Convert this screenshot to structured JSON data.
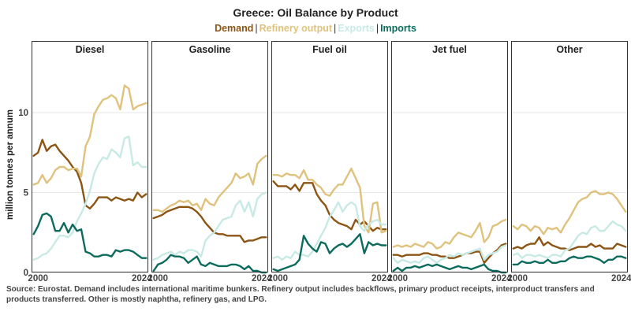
{
  "chart": {
    "title": "Greece: Oil Balance by Product",
    "ylabel": "million tonnes per annum",
    "source": "Source: Eurostat. Demand includes international maritime bunkers. Refinery output includes backflows, primary product receipts, interproduct transfers and products transferred. Other is mostly naphtha, refinery gas, and LPG.",
    "legend_separator": "|",
    "colors": {
      "Demand": "#8c5514",
      "Refinery output": "#dfc27d",
      "Exports": "#c7eae5",
      "Imports": "#0d6b5e"
    }
  },
  "chart_data": {
    "type": "line",
    "title": "Greece: Oil Balance by Product",
    "ylabel": "million tonnes per annum",
    "ylim": [
      0,
      13.5
    ],
    "yticks": [
      0,
      5,
      10
    ],
    "xticks": [
      2000,
      2024
    ],
    "xlim": [
      1998.5,
      2025.5
    ],
    "grid": true,
    "legend": "top-center",
    "series_order": [
      "Demand",
      "Refinery output",
      "Exports",
      "Imports"
    ],
    "x": [
      1998,
      1999,
      2000,
      2001,
      2002,
      2003,
      2004,
      2005,
      2006,
      2007,
      2008,
      2009,
      2010,
      2011,
      2012,
      2013,
      2014,
      2015,
      2016,
      2017,
      2018,
      2019,
      2020,
      2021,
      2022,
      2023,
      2024,
      2025
    ],
    "panels": [
      {
        "name": "Diesel",
        "series": [
          {
            "name": "Demand",
            "values": [
              7.1,
              7.3,
              7.5,
              8.3,
              7.6,
              7.9,
              8.0,
              7.6,
              7.3,
              7.0,
              6.6,
              6.3,
              5.6,
              4.2,
              4.0,
              4.3,
              4.7,
              4.7,
              4.7,
              4.5,
              4.7,
              4.6,
              4.5,
              4.6,
              4.5,
              5.0,
              4.7,
              4.9
            ]
          },
          {
            "name": "Refinery output",
            "values": [
              5.4,
              5.5,
              5.6,
              6.1,
              5.6,
              5.9,
              6.4,
              6.6,
              6.6,
              6.4,
              6.5,
              6.5,
              6.0,
              7.9,
              8.5,
              9.9,
              10.4,
              10.8,
              10.9,
              11.1,
              10.9,
              10.2,
              11.7,
              11.5,
              10.2,
              10.4,
              10.5,
              10.6
            ]
          },
          {
            "name": "Exports",
            "values": [
              0.6,
              0.8,
              0.9,
              1.1,
              1.2,
              1.5,
              1.9,
              2.3,
              2.3,
              2.2,
              2.5,
              3.2,
              3.7,
              4.3,
              5.1,
              6.2,
              6.8,
              7.2,
              7.1,
              7.7,
              7.5,
              7.2,
              8.4,
              8.5,
              6.7,
              6.9,
              6.6,
              6.6
            ]
          },
          {
            "name": "Imports",
            "values": [
              2.0,
              2.4,
              2.9,
              3.6,
              3.7,
              3.5,
              2.6,
              2.6,
              3.1,
              2.5,
              3.0,
              2.6,
              2.7,
              1.3,
              1.2,
              1.0,
              1.0,
              1.1,
              1.1,
              1.0,
              1.4,
              1.3,
              1.4,
              1.4,
              1.3,
              1.1,
              0.9,
              0.9
            ]
          }
        ]
      },
      {
        "name": "Gasoline",
        "series": [
          {
            "name": "Demand",
            "values": [
              3.3,
              3.4,
              3.5,
              3.6,
              3.8,
              3.9,
              4.0,
              4.1,
              4.1,
              4.1,
              4.0,
              3.8,
              3.5,
              3.1,
              2.8,
              2.5,
              2.4,
              2.4,
              2.3,
              2.3,
              2.3,
              2.3,
              1.9,
              2.0,
              2.0,
              2.1,
              2.2,
              2.2
            ]
          },
          {
            "name": "Refinery output",
            "values": [
              3.8,
              3.9,
              3.9,
              3.8,
              4.0,
              4.2,
              4.3,
              4.5,
              4.4,
              4.5,
              4.2,
              4.3,
              3.9,
              4.6,
              4.3,
              4.2,
              4.7,
              5.0,
              5.3,
              5.6,
              6.2,
              5.9,
              6.0,
              6.2,
              5.5,
              6.8,
              7.1,
              7.3
            ]
          },
          {
            "name": "Exports",
            "values": [
              0.7,
              0.8,
              0.9,
              1.1,
              1.2,
              1.3,
              1.1,
              1.3,
              1.2,
              1.4,
              1.4,
              1.3,
              1.0,
              2.0,
              2.3,
              2.5,
              2.9,
              3.3,
              3.4,
              3.5,
              4.2,
              4.5,
              3.8,
              4.4,
              3.5,
              4.6,
              4.9,
              5.0
            ]
          },
          {
            "name": "Imports",
            "values": [
              0.4,
              0.1,
              0.5,
              0.6,
              0.8,
              1.1,
              1.0,
              1.0,
              0.9,
              0.6,
              0.8,
              1.0,
              0.5,
              0.4,
              0.6,
              0.5,
              0.4,
              0.4,
              0.4,
              0.5,
              0.5,
              0.4,
              0.2,
              0.4,
              0.1,
              0.1,
              0.0,
              0.0
            ]
          }
        ]
      },
      {
        "name": "Fuel oil",
        "series": [
          {
            "name": "Demand",
            "values": [
              5.7,
              5.7,
              5.4,
              5.4,
              5.4,
              5.2,
              5.5,
              5.1,
              5.6,
              5.6,
              5.6,
              4.9,
              4.5,
              4.2,
              3.6,
              3.3,
              3.1,
              3.0,
              2.9,
              2.7,
              3.3,
              3.0,
              3.2,
              2.9,
              2.6,
              2.8,
              2.7,
              2.7
            ]
          },
          {
            "name": "Refinery output",
            "values": [
              6.1,
              6.1,
              6.1,
              6.0,
              6.2,
              6.1,
              6.1,
              5.9,
              6.4,
              5.8,
              5.8,
              5.5,
              5.3,
              4.9,
              4.8,
              5.2,
              5.5,
              5.5,
              6.0,
              6.5,
              5.9,
              5.3,
              2.9,
              2.5,
              4.3,
              4.4,
              2.5,
              2.6
            ]
          },
          {
            "name": "Exports",
            "values": [
              0.8,
              0.9,
              1.0,
              0.8,
              1.0,
              0.9,
              1.3,
              1.1,
              1.1,
              1.0,
              1.3,
              1.8,
              2.3,
              2.8,
              3.5,
              3.9,
              4.4,
              3.8,
              4.2,
              4.4,
              4.2,
              2.9,
              2.6,
              3.0,
              3.2,
              3.3,
              3.0,
              3.0
            ]
          },
          {
            "name": "Imports",
            "values": [
              0.2,
              0.2,
              0.1,
              0.2,
              0.3,
              0.4,
              0.5,
              0.8,
              2.3,
              1.8,
              1.5,
              1.3,
              1.9,
              1.8,
              1.2,
              1.5,
              1.7,
              1.8,
              1.6,
              1.8,
              2.1,
              2.4,
              1.2,
              1.9,
              1.7,
              1.8,
              1.7,
              1.7
            ]
          }
        ]
      },
      {
        "name": "Jet fuel",
        "series": [
          {
            "name": "Demand",
            "values": [
              1.2,
              1.1,
              1.1,
              1.0,
              1.1,
              1.1,
              1.1,
              1.1,
              1.2,
              1.2,
              1.1,
              1.1,
              1.0,
              1.0,
              0.9,
              0.9,
              1.0,
              1.1,
              1.2,
              1.2,
              1.3,
              1.3,
              0.6,
              0.9,
              1.2,
              1.4,
              1.7,
              1.8
            ]
          },
          {
            "name": "Refinery output",
            "values": [
              1.9,
              1.6,
              1.7,
              1.6,
              1.7,
              1.6,
              1.8,
              1.7,
              1.6,
              1.9,
              1.8,
              1.5,
              1.6,
              1.9,
              1.8,
              2.2,
              2.5,
              2.4,
              2.3,
              2.2,
              2.6,
              3.1,
              1.9,
              2.2,
              2.9,
              3.0,
              3.2,
              3.3
            ]
          },
          {
            "name": "Exports",
            "values": [
              0.7,
              0.9,
              0.6,
              0.8,
              0.7,
              0.6,
              0.7,
              0.6,
              0.9,
              1.0,
              0.8,
              0.6,
              0.8,
              0.9,
              1.1,
              1.0,
              1.2,
              1.1,
              1.2,
              1.3,
              1.4,
              1.5,
              0.8,
              1.1,
              1.2,
              1.3,
              1.6,
              1.7
            ]
          },
          {
            "name": "Imports",
            "values": [
              0.2,
              0.1,
              0.3,
              0.1,
              0.3,
              0.3,
              0.4,
              0.3,
              0.4,
              0.5,
              0.4,
              0.5,
              0.4,
              0.3,
              0.2,
              0.3,
              0.4,
              0.3,
              0.3,
              0.2,
              0.3,
              0.4,
              0.5,
              0.2,
              0.1,
              0.1,
              0.0,
              0.0
            ]
          }
        ]
      },
      {
        "name": "Other",
        "series": [
          {
            "name": "Demand",
            "values": [
              1.4,
              1.5,
              1.6,
              1.5,
              1.7,
              1.8,
              1.8,
              2.2,
              1.7,
              1.9,
              1.7,
              1.6,
              1.5,
              1.5,
              1.4,
              1.5,
              1.6,
              1.6,
              1.6,
              1.8,
              1.6,
              1.7,
              1.5,
              1.5,
              1.5,
              1.8,
              1.7,
              1.6
            ]
          },
          {
            "name": "Refinery output",
            "values": [
              3.1,
              2.9,
              2.7,
              3.0,
              2.9,
              2.6,
              2.9,
              2.8,
              2.4,
              2.8,
              2.7,
              2.8,
              2.5,
              3.0,
              3.4,
              3.9,
              4.4,
              4.6,
              4.7,
              5.0,
              5.1,
              4.9,
              4.9,
              5.0,
              4.9,
              4.6,
              4.2,
              3.8
            ]
          },
          {
            "name": "Exports",
            "values": [
              1.0,
              1.1,
              1.2,
              0.9,
              1.1,
              1.1,
              1.0,
              1.1,
              1.0,
              0.9,
              1.1,
              1.1,
              1.0,
              1.4,
              1.5,
              1.9,
              2.3,
              2.5,
              2.4,
              2.8,
              2.9,
              2.6,
              2.6,
              2.9,
              3.2,
              3.0,
              2.9,
              2.6
            ]
          },
          {
            "name": "Imports",
            "values": [
              0.5,
              0.5,
              0.5,
              0.7,
              0.6,
              0.6,
              0.7,
              0.6,
              0.6,
              0.8,
              0.6,
              0.6,
              0.7,
              0.7,
              0.9,
              1.0,
              0.9,
              0.9,
              1.0,
              1.0,
              0.9,
              0.8,
              0.6,
              0.8,
              0.8,
              1.0,
              1.0,
              0.9
            ]
          }
        ]
      }
    ]
  }
}
